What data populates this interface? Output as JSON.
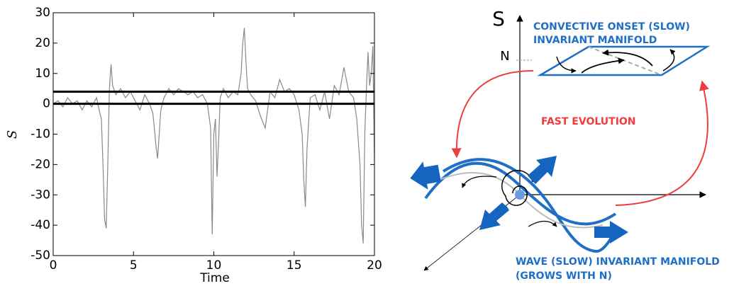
{
  "chart_data": {
    "type": "line",
    "x_label": "Time",
    "y_label": "S",
    "xlim": [
      0,
      20
    ],
    "ylim": [
      -50,
      30
    ],
    "xticks": [
      0,
      5,
      10,
      15,
      20
    ],
    "yticks": [
      -50,
      -40,
      -30,
      -20,
      -10,
      0,
      10,
      20,
      30
    ],
    "hlines": [
      0,
      4
    ],
    "hline_color": "#000000",
    "series": [
      {
        "color": "#888888",
        "x": [
          0,
          0.3,
          0.6,
          0.9,
          1.2,
          1.5,
          1.8,
          2.1,
          2.4,
          2.7,
          2.9,
          3.0,
          3.1,
          3.2,
          3.3,
          3.4,
          3.5,
          3.6,
          3.7,
          3.9,
          4.2,
          4.5,
          4.8,
          5.1,
          5.4,
          5.7,
          6.0,
          6.2,
          6.3,
          6.4,
          6.5,
          6.6,
          6.7,
          6.9,
          7.2,
          7.5,
          7.8,
          8.1,
          8.4,
          8.7,
          9.0,
          9.3,
          9.6,
          9.8,
          9.9,
          10.0,
          10.1,
          10.2,
          10.3,
          10.4,
          10.6,
          10.9,
          11.2,
          11.5,
          11.7,
          11.8,
          11.9,
          12.0,
          12.1,
          12.3,
          12.6,
          12.9,
          13.2,
          13.5,
          13.8,
          14.1,
          14.4,
          14.7,
          15.0,
          15.3,
          15.5,
          15.6,
          15.7,
          15.8,
          16.0,
          16.3,
          16.6,
          16.9,
          17.2,
          17.5,
          17.8,
          18.1,
          18.4,
          18.7,
          18.9,
          19.1,
          19.2,
          19.3,
          19.4,
          19.5,
          19.6,
          19.7,
          19.8,
          19.9,
          20.0
        ],
        "values": [
          0,
          1,
          -1,
          2,
          0,
          1,
          -2,
          1,
          -1,
          2,
          -3,
          -5,
          -20,
          -38,
          -41,
          -20,
          5,
          13,
          6,
          3,
          5,
          2,
          4,
          1,
          -2,
          3,
          0,
          -3,
          -8,
          -14,
          -18,
          -10,
          -2,
          2,
          5,
          3,
          5,
          4,
          3,
          4,
          2,
          3,
          0,
          -8,
          -43,
          -10,
          -5,
          -24,
          -12,
          2,
          5,
          2,
          4,
          3,
          10,
          20,
          25,
          14,
          5,
          3,
          1,
          -4,
          -8,
          4,
          2,
          8,
          4,
          5,
          3,
          -2,
          -10,
          -25,
          -34,
          -15,
          2,
          3,
          -2,
          4,
          -5,
          6,
          3,
          12,
          4,
          2,
          -5,
          -20,
          -40,
          -46,
          -10,
          5,
          17,
          6,
          10,
          19,
          -19
        ]
      }
    ]
  },
  "diagram": {
    "s_axis": "S",
    "n_label": "N",
    "convective": [
      "CONVECTIVE ONSET (SLOW)",
      "INVARIANT MANIFOLD"
    ],
    "fast": "FAST EVOLUTION",
    "wave": [
      "WAVE (SLOW) INVARIANT MANIFOLD",
      "(GROWS WITH N)"
    ]
  }
}
